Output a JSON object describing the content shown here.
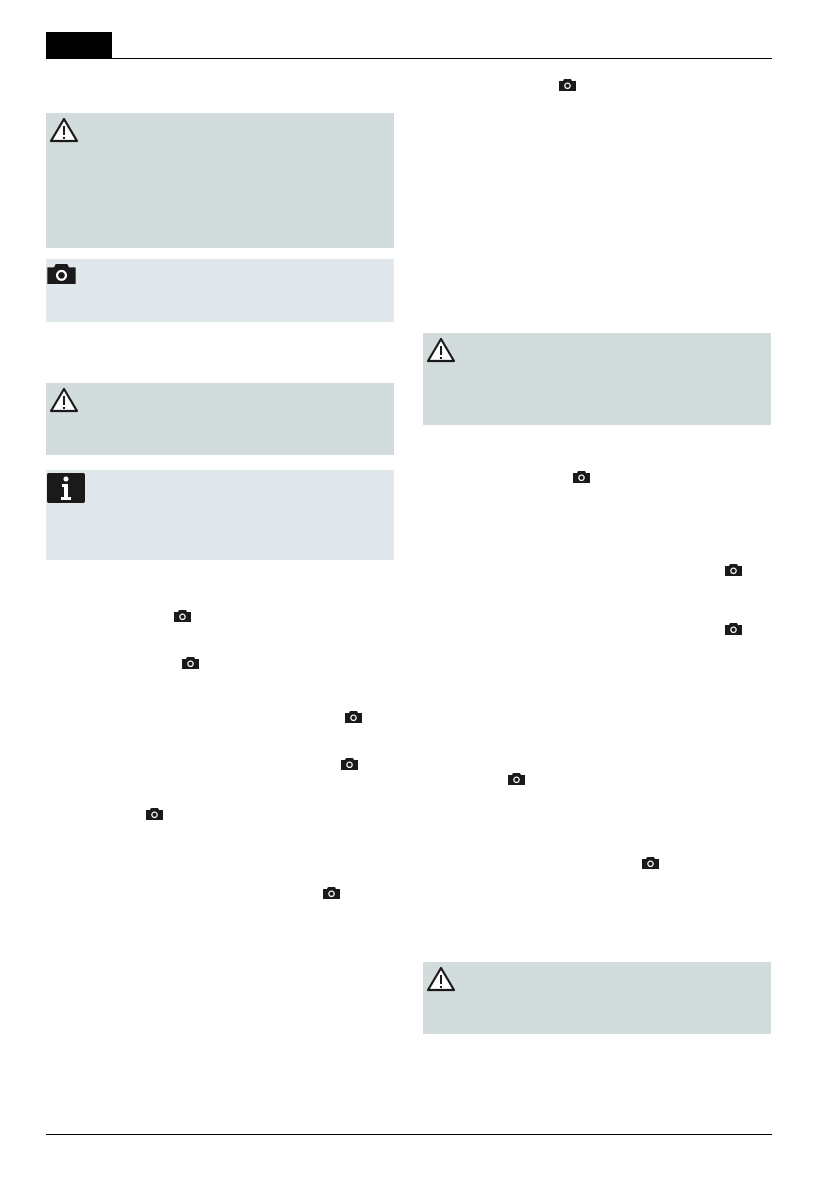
{
  "colors": {
    "warning_box": "#d3dcdd",
    "note_box": "#e0e8eb",
    "ink": "#1a1a1a"
  },
  "icons": {
    "warning": "warning-triangle-icon",
    "camera": "camera-icon",
    "info": "info-icon"
  }
}
